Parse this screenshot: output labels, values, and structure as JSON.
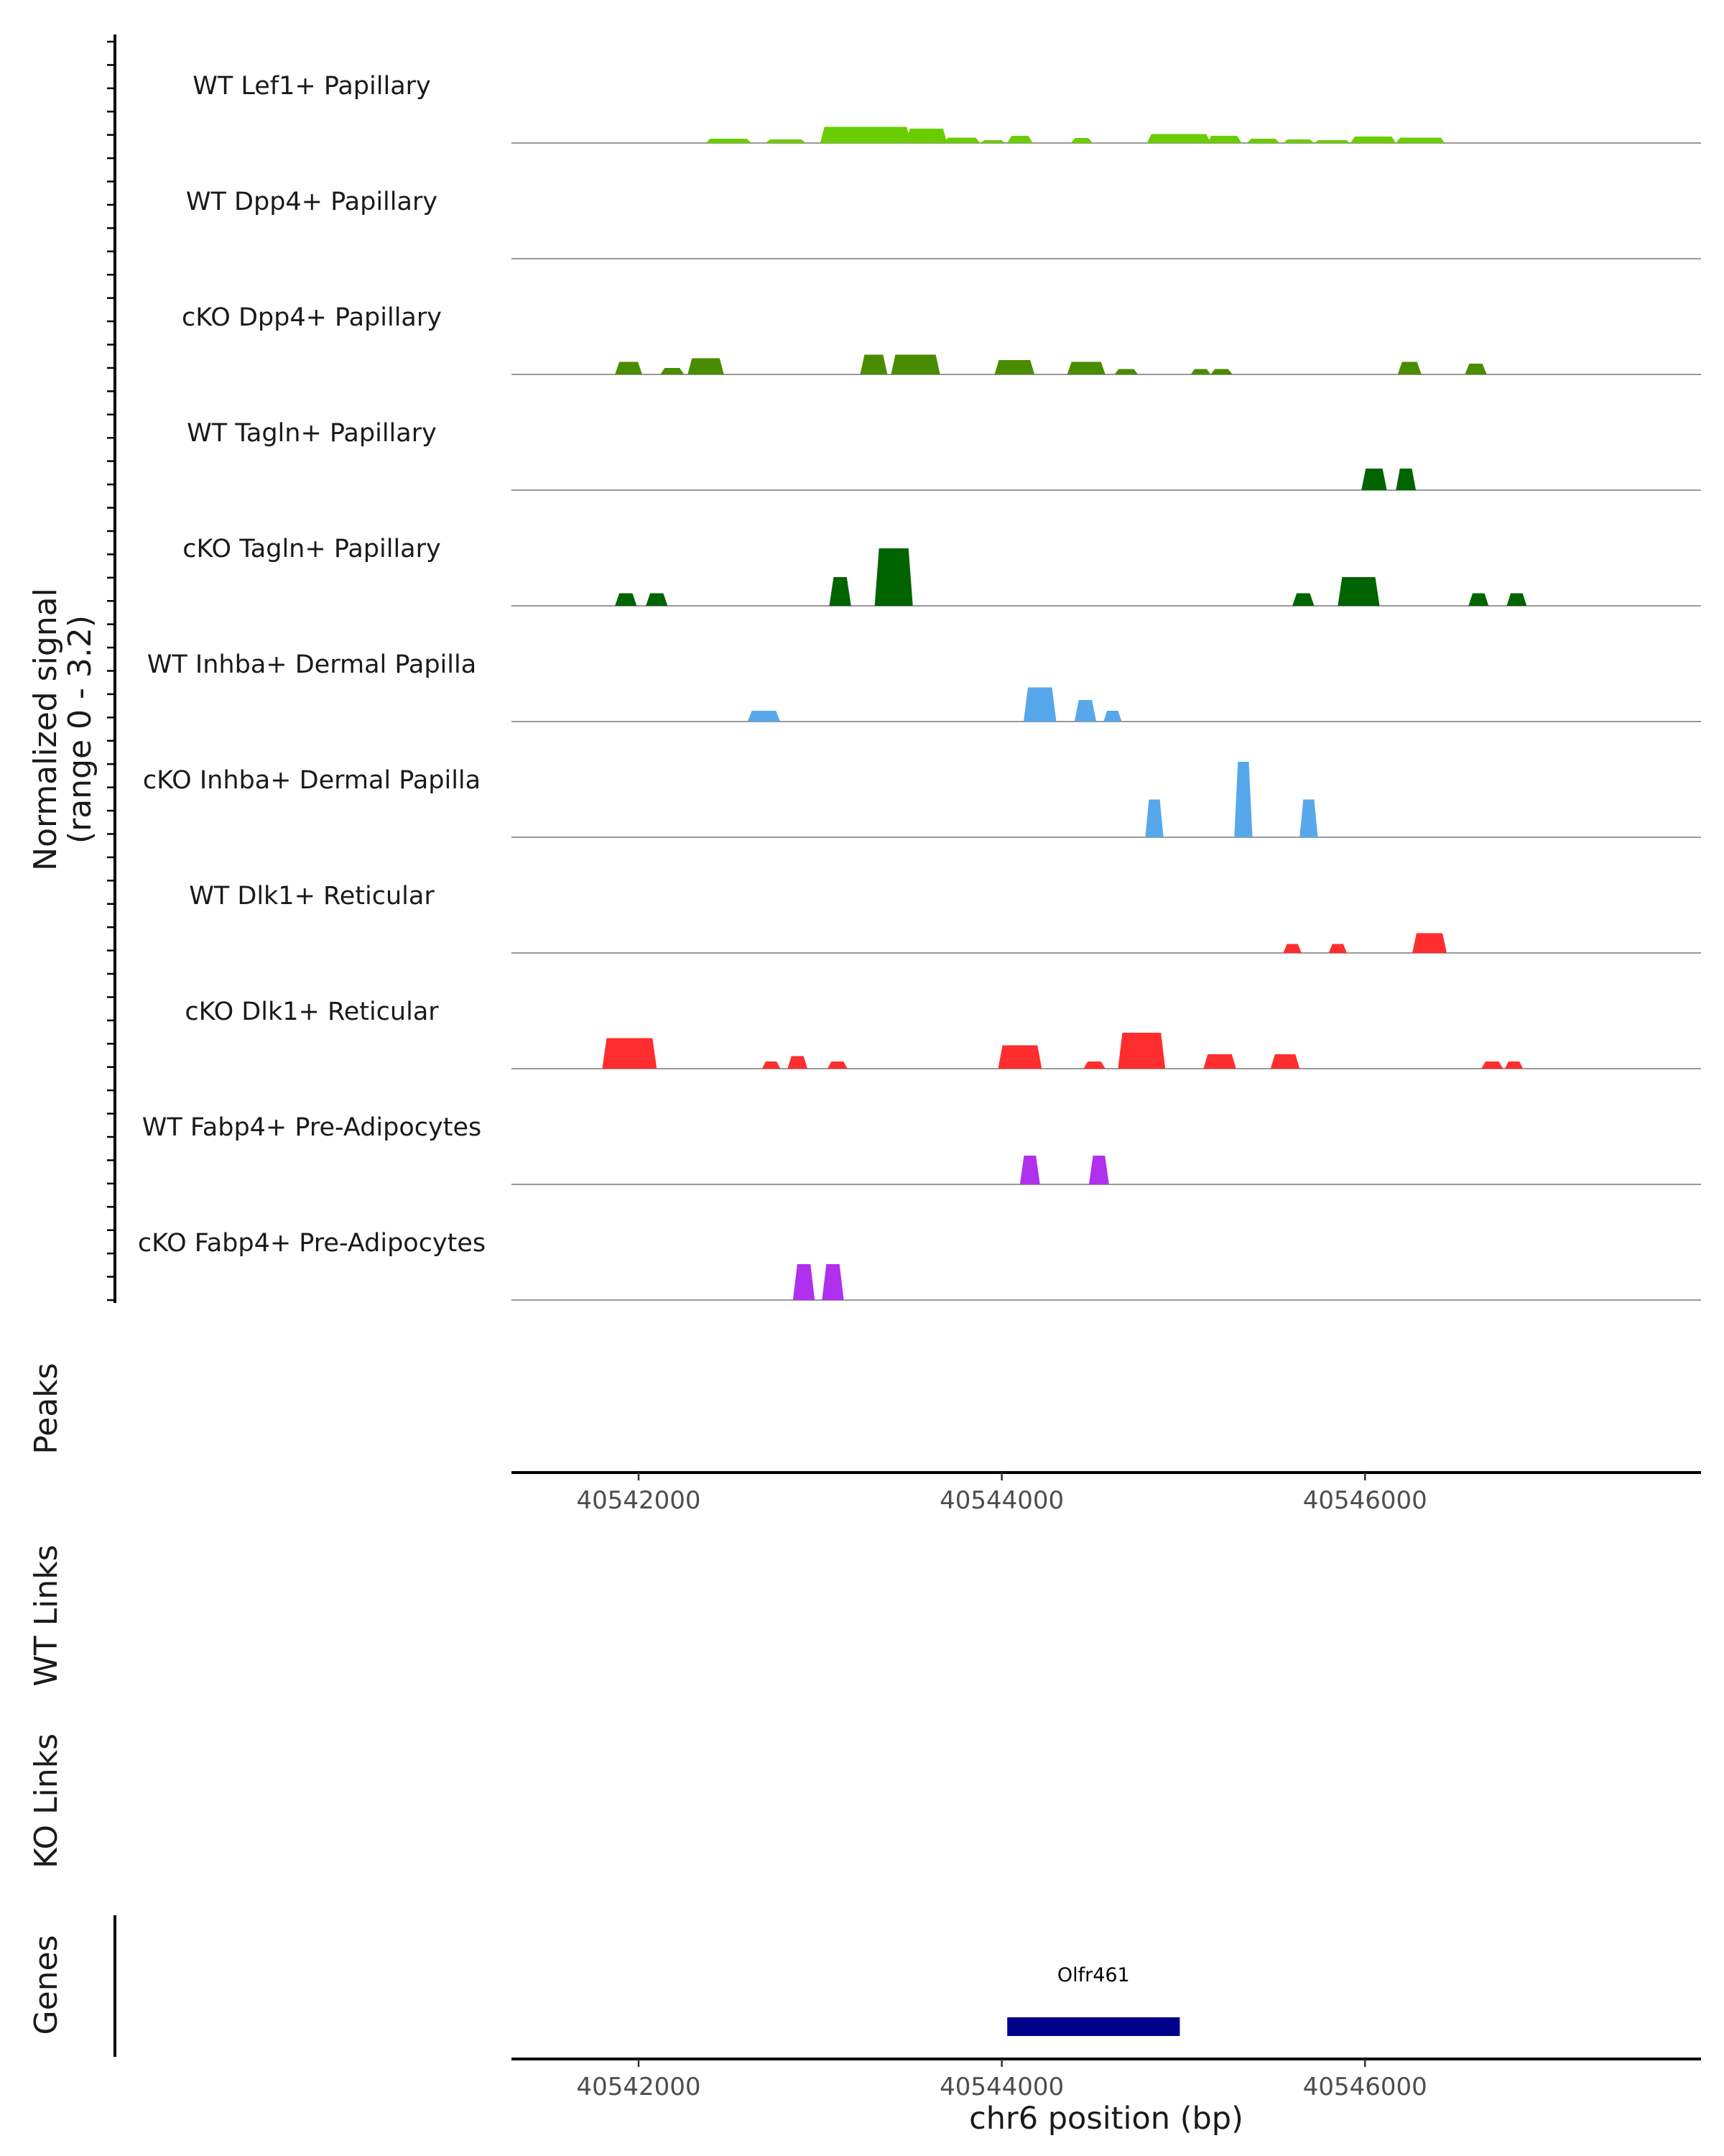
{
  "chart_data": {
    "type": "area",
    "chromosome": "chr6",
    "x_range": [
      40541300,
      40547850
    ],
    "xticks": [
      40542000,
      40544000,
      40546000
    ],
    "xtick_labels": [
      "40542000",
      "40544000",
      "40546000"
    ],
    "xlabel": "chr6 position (bp)",
    "ylabel_line1": "Normalized signal",
    "ylabel_line2": "(range 0 - 3.2)",
    "y_range": [
      0,
      3.2
    ],
    "panel_labels": {
      "peaks": "Peaks",
      "wt_links": "WT Links",
      "ko_links": "KO Links",
      "genes": "Genes"
    },
    "tracks": [
      {
        "name": "WT Lef1+ Papillary",
        "color": "#6acd00",
        "peaks": [
          [
            40542370,
            40542620,
            0.12
          ],
          [
            40542700,
            40542920,
            0.1
          ],
          [
            40543000,
            40543500,
            0.45
          ],
          [
            40543470,
            40543700,
            0.4
          ],
          [
            40543680,
            40543880,
            0.15
          ],
          [
            40543880,
            40544020,
            0.08
          ],
          [
            40544030,
            40544170,
            0.2
          ],
          [
            40544380,
            40544500,
            0.14
          ],
          [
            40544800,
            40545150,
            0.25
          ],
          [
            40545130,
            40545320,
            0.2
          ],
          [
            40545350,
            40545530,
            0.12
          ],
          [
            40545550,
            40545720,
            0.1
          ],
          [
            40545720,
            40545920,
            0.08
          ],
          [
            40545920,
            40546170,
            0.18
          ],
          [
            40546170,
            40546440,
            0.15
          ]
        ]
      },
      {
        "name": "WT Dpp4+ Papillary",
        "color": "#4a8c00",
        "peaks": []
      },
      {
        "name": "cKO Dpp4+ Papillary",
        "color": "#4a8c00",
        "peaks": [
          [
            40541870,
            40542020,
            0.35
          ],
          [
            40542120,
            40542250,
            0.18
          ],
          [
            40542270,
            40542470,
            0.45
          ],
          [
            40543220,
            40543370,
            0.55
          ],
          [
            40543390,
            40543660,
            0.55
          ],
          [
            40543960,
            40544180,
            0.4
          ],
          [
            40544360,
            40544570,
            0.35
          ],
          [
            40544620,
            40544750,
            0.15
          ],
          [
            40545040,
            40545150,
            0.15
          ],
          [
            40545150,
            40545270,
            0.15
          ],
          [
            40546180,
            40546310,
            0.35
          ],
          [
            40546550,
            40546670,
            0.3
          ]
        ]
      },
      {
        "name": "WT Tagln+ Papillary",
        "color": "#006400",
        "peaks": [
          [
            40545980,
            40546120,
            0.6
          ],
          [
            40546170,
            40546280,
            0.6
          ]
        ]
      },
      {
        "name": "cKO Tagln+ Papillary",
        "color": "#006400",
        "peaks": [
          [
            40541870,
            40541990,
            0.35
          ],
          [
            40542040,
            40542160,
            0.35
          ],
          [
            40543050,
            40543170,
            0.8
          ],
          [
            40543300,
            40543510,
            1.6
          ],
          [
            40545600,
            40545720,
            0.35
          ],
          [
            40545850,
            40546080,
            0.8
          ],
          [
            40546570,
            40546680,
            0.35
          ],
          [
            40546780,
            40546890,
            0.35
          ]
        ]
      },
      {
        "name": "WT Inhba+ Dermal Papilla",
        "color": "#56a8ea",
        "peaks": [
          [
            40542600,
            40542780,
            0.3
          ],
          [
            40544120,
            40544300,
            0.95
          ],
          [
            40544400,
            40544520,
            0.6
          ],
          [
            40544560,
            40544660,
            0.3
          ]
        ]
      },
      {
        "name": "cKO Inhba+ Dermal Papilla",
        "color": "#56a8ea",
        "peaks": [
          [
            40544790,
            40544890,
            1.05
          ],
          [
            40545280,
            40545380,
            2.1
          ],
          [
            40545640,
            40545740,
            1.05
          ]
        ]
      },
      {
        "name": "WT Dlk1+ Reticular",
        "color": "#ff2d2d",
        "peaks": [
          [
            40545550,
            40545650,
            0.25
          ],
          [
            40545800,
            40545900,
            0.25
          ],
          [
            40546260,
            40546450,
            0.55
          ]
        ]
      },
      {
        "name": "cKO Dlk1+ Reticular",
        "color": "#ff2d2d",
        "peaks": [
          [
            40541800,
            40542100,
            0.85
          ],
          [
            40542680,
            40542780,
            0.2
          ],
          [
            40542820,
            40542930,
            0.35
          ],
          [
            40543040,
            40543150,
            0.2
          ],
          [
            40543980,
            40544220,
            0.65
          ],
          [
            40544450,
            40544570,
            0.2
          ],
          [
            40544640,
            40544900,
            1.0
          ],
          [
            40545110,
            40545290,
            0.4
          ],
          [
            40545480,
            40545640,
            0.4
          ],
          [
            40546640,
            40546760,
            0.2
          ],
          [
            40546770,
            40546870,
            0.2
          ]
        ]
      },
      {
        "name": "WT Fabp4+ Pre-Adipocytes",
        "color": "#b030ee",
        "peaks": [
          [
            40544100,
            40544210,
            0.8
          ],
          [
            40544480,
            40544590,
            0.8
          ]
        ]
      },
      {
        "name": "cKO Fabp4+ Pre-Adipocytes",
        "color": "#b030ee",
        "peaks": [
          [
            40542850,
            40542970,
            1.0
          ],
          [
            40543010,
            40543130,
            1.0
          ]
        ]
      }
    ],
    "genes": [
      {
        "name": "Olfr461",
        "start": 40544030,
        "end": 40544980,
        "color": "#00008b"
      }
    ]
  }
}
